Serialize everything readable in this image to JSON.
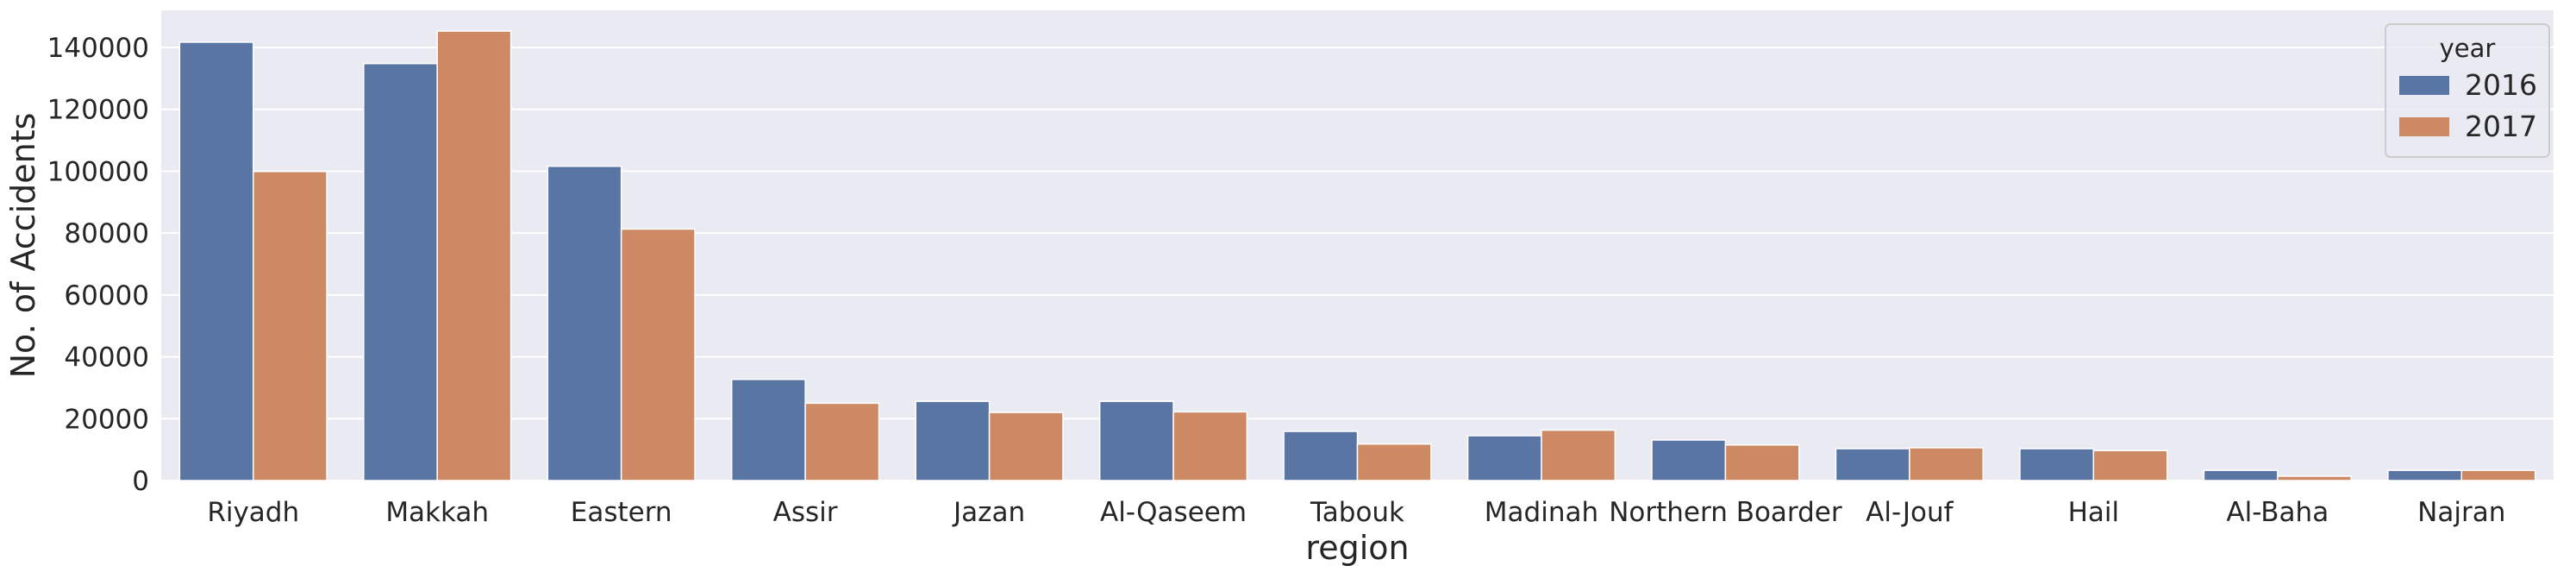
{
  "chart_data": {
    "type": "bar",
    "xlabel": "region",
    "ylabel": "No. of Accidents",
    "ylim": [
      0,
      152000
    ],
    "yticks": [
      0,
      20000,
      40000,
      60000,
      80000,
      100000,
      120000,
      140000
    ],
    "grid": true,
    "legend": {
      "title": "year",
      "placement": "top-right"
    },
    "categories": [
      "Riyadh",
      "Makkah",
      "Eastern",
      "Assir",
      "Jazan",
      "Al-Qaseem",
      "Tabouk",
      "Madinah",
      "Northern Boarder",
      "Al-Jouf",
      "Hail",
      "Al-Baha",
      "Najran"
    ],
    "series": [
      {
        "name": "2016",
        "color": "#5875a4",
        "values": [
          141700,
          134800,
          101600,
          32700,
          25600,
          25600,
          15900,
          14500,
          13100,
          10300,
          10300,
          3300,
          3300
        ]
      },
      {
        "name": "2017",
        "color": "#cc8963",
        "values": [
          99900,
          145300,
          81300,
          25000,
          22000,
          22200,
          11800,
          16300,
          11500,
          10600,
          9700,
          1400,
          3300
        ]
      }
    ]
  },
  "colors": {
    "plot_background": "#eaeaf2",
    "grid": "#ffffff",
    "text": "#262626"
  }
}
